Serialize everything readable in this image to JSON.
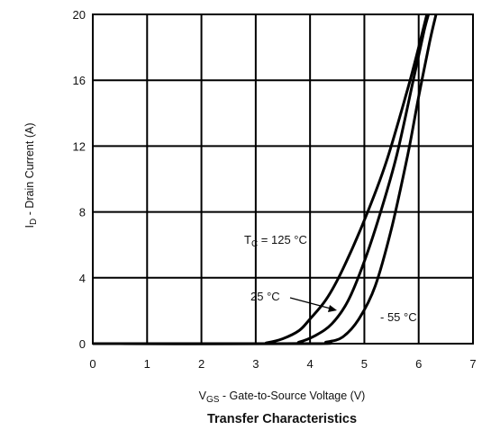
{
  "chart_data": {
    "type": "line",
    "title": "Transfer Characteristics",
    "xlabel": {
      "main": "V",
      "sub": "GS",
      "rest": " - Gate-to-Source Voltage (V)"
    },
    "ylabel": {
      "main": "I",
      "sub": "D",
      "rest": " - Drain Current (A)"
    },
    "xlim": [
      0,
      7
    ],
    "ylim": [
      0,
      20
    ],
    "x_ticks": [
      "0",
      "1",
      "2",
      "3",
      "4",
      "5",
      "6",
      "7"
    ],
    "y_ticks": [
      "0",
      "4",
      "8",
      "12",
      "16",
      "20"
    ],
    "grid": true,
    "series": [
      {
        "name": "TC = 125 °C",
        "points": [
          [
            0,
            0
          ],
          [
            3.0,
            0
          ],
          [
            3.2,
            0.05
          ],
          [
            3.5,
            0.3
          ],
          [
            3.8,
            0.8
          ],
          [
            4.0,
            1.5
          ],
          [
            4.3,
            2.7
          ],
          [
            4.6,
            4.5
          ],
          [
            5.0,
            7.5
          ],
          [
            5.4,
            11.0
          ],
          [
            5.8,
            15.5
          ],
          [
            6.0,
            18.0
          ],
          [
            6.15,
            20.0
          ]
        ]
      },
      {
        "name": "25 °C",
        "points": [
          [
            0,
            0
          ],
          [
            3.5,
            0
          ],
          [
            3.8,
            0.1
          ],
          [
            4.1,
            0.5
          ],
          [
            4.4,
            1.2
          ],
          [
            4.7,
            2.6
          ],
          [
            5.0,
            5.0
          ],
          [
            5.3,
            8.0
          ],
          [
            5.6,
            11.5
          ],
          [
            5.9,
            16.0
          ],
          [
            6.1,
            19.0
          ],
          [
            6.18,
            20.0
          ]
        ]
      },
      {
        "name": "- 55 °C",
        "points": [
          [
            0,
            0
          ],
          [
            4.0,
            0
          ],
          [
            4.3,
            0.1
          ],
          [
            4.6,
            0.4
          ],
          [
            4.9,
            1.5
          ],
          [
            5.2,
            3.5
          ],
          [
            5.5,
            7.0
          ],
          [
            5.8,
            11.5
          ],
          [
            6.0,
            15.0
          ],
          [
            6.2,
            18.3
          ],
          [
            6.32,
            20.0
          ]
        ]
      }
    ],
    "annotations": [
      {
        "main": "T",
        "sub": "C",
        "rest": " = 125 °C"
      },
      {
        "text": "25 °C"
      },
      {
        "text": "- 55 °C"
      }
    ]
  }
}
